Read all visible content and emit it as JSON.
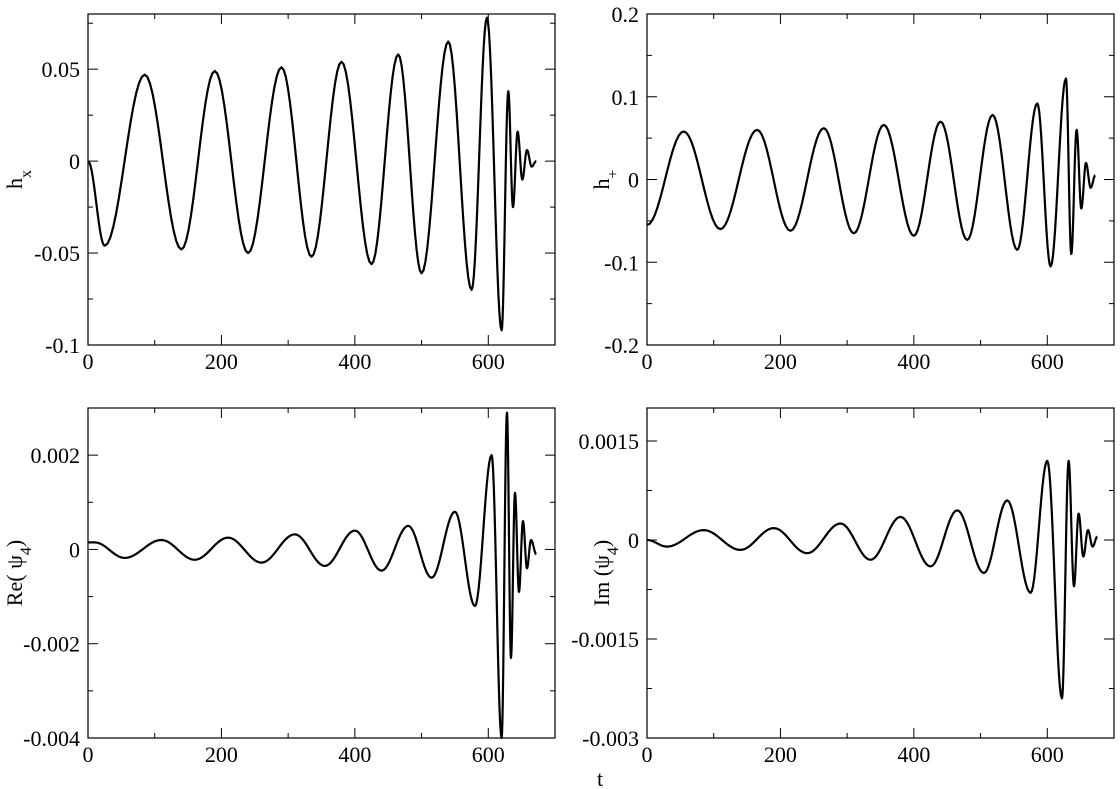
{
  "chart_data": [
    {
      "type": "line",
      "ylabel": "h",
      "ylabel_sub": "x",
      "xlabel": "",
      "xlim": [
        0,
        700
      ],
      "ylim": [
        -0.1,
        0.08
      ],
      "xticks": [
        0,
        200,
        400,
        600
      ],
      "xtick_labels": [
        "0",
        "200",
        "400",
        "600"
      ],
      "yticks": [
        -0.1,
        -0.05,
        0,
        0.05
      ],
      "ytick_labels": [
        "-0.1",
        "-0.05",
        "0",
        "0.05"
      ],
      "grid": false,
      "series": [
        {
          "x": [
            0,
            25,
            85,
            140,
            190,
            240,
            290,
            335,
            380,
            425,
            465,
            500,
            540,
            575,
            598,
            620,
            630,
            637,
            644,
            651,
            658,
            665,
            672
          ],
          "y": [
            0,
            -0.046,
            0.047,
            -0.048,
            0.049,
            -0.05,
            0.051,
            -0.052,
            0.054,
            -0.056,
            0.058,
            -0.061,
            0.065,
            -0.07,
            0.078,
            -0.092,
            0.038,
            -0.025,
            0.016,
            -0.01,
            0.006,
            -0.003,
            0.0
          ]
        }
      ]
    },
    {
      "type": "line",
      "ylabel": "h",
      "ylabel_sub": "+",
      "xlabel": "",
      "xlim": [
        0,
        700
      ],
      "ylim": [
        -0.2,
        0.2
      ],
      "xticks": [
        0,
        200,
        400,
        600
      ],
      "xtick_labels": [
        "0",
        "200",
        "400",
        "600"
      ],
      "yticks": [
        -0.2,
        -0.1,
        0,
        0.1,
        0.2
      ],
      "ytick_labels": [
        "-0.2",
        "-0.1",
        "0",
        "0.1",
        "0.2"
      ],
      "grid": false,
      "series": [
        {
          "x": [
            0,
            55,
            110,
            165,
            215,
            265,
            310,
            355,
            400,
            440,
            480,
            518,
            555,
            585,
            605,
            628,
            636,
            644,
            651,
            658,
            665,
            672
          ],
          "y": [
            -0.055,
            0.058,
            -0.06,
            0.06,
            -0.062,
            0.062,
            -0.065,
            0.066,
            -0.068,
            0.07,
            -0.073,
            0.078,
            -0.085,
            0.092,
            -0.105,
            0.122,
            -0.09,
            0.06,
            -0.035,
            0.02,
            -0.01,
            0.005
          ]
        }
      ]
    },
    {
      "type": "line",
      "ylabel": "Re( ψ",
      "ylabel_sub": "4",
      "ylabel_end": ")",
      "xlabel": "",
      "xlim": [
        0,
        700
      ],
      "ylim": [
        -0.004,
        0.003
      ],
      "xticks": [
        0,
        200,
        400,
        600
      ],
      "xtick_labels": [
        "0",
        "200",
        "400",
        "600"
      ],
      "yticks": [
        -0.004,
        -0.002,
        0,
        0.002
      ],
      "ytick_labels": [
        "-0.004",
        "-0.002",
        "0",
        "0.002"
      ],
      "grid": false,
      "series": [
        {
          "x": [
            0,
            10,
            55,
            110,
            160,
            210,
            260,
            310,
            355,
            400,
            440,
            480,
            515,
            550,
            580,
            605,
            620,
            628,
            634,
            640,
            646,
            652,
            658,
            664,
            672
          ],
          "y": [
            0.00015,
            0.00015,
            -0.00018,
            0.0002,
            -0.00022,
            0.00025,
            -0.00028,
            0.00032,
            -0.00035,
            0.0004,
            -0.00045,
            0.0005,
            -0.0006,
            0.0008,
            -0.0012,
            0.002,
            -0.004,
            0.0029,
            -0.0023,
            0.0012,
            -0.0009,
            0.0006,
            -0.0004,
            0.0002,
            -0.0001
          ]
        }
      ]
    },
    {
      "type": "line",
      "ylabel": "Im (ψ",
      "ylabel_sub": "4",
      "ylabel_end": ")",
      "xlabel": "t",
      "xlim": [
        0,
        700
      ],
      "ylim": [
        -0.003,
        0.002
      ],
      "xticks": [
        0,
        200,
        400,
        600
      ],
      "xtick_labels": [
        "0",
        "200",
        "400",
        "600"
      ],
      "yticks": [
        -0.003,
        -0.0015,
        0,
        0.0015
      ],
      "ytick_labels": [
        "-0.003",
        "-0.0015",
        "0",
        "0.0015"
      ],
      "grid": false,
      "series": [
        {
          "x": [
            0,
            30,
            85,
            140,
            190,
            240,
            290,
            335,
            380,
            425,
            465,
            505,
            540,
            575,
            600,
            622,
            632,
            640,
            647,
            654,
            661,
            668,
            675
          ],
          "y": [
            0,
            -0.0001,
            0.00015,
            -0.00015,
            0.00018,
            -0.0002,
            0.00025,
            -0.0003,
            0.00035,
            -0.0004,
            0.00045,
            -0.0005,
            0.0006,
            -0.0008,
            0.0012,
            -0.0024,
            0.0012,
            -0.0007,
            0.0004,
            -0.00025,
            0.00015,
            -0.0001,
            5e-05
          ]
        }
      ]
    }
  ]
}
